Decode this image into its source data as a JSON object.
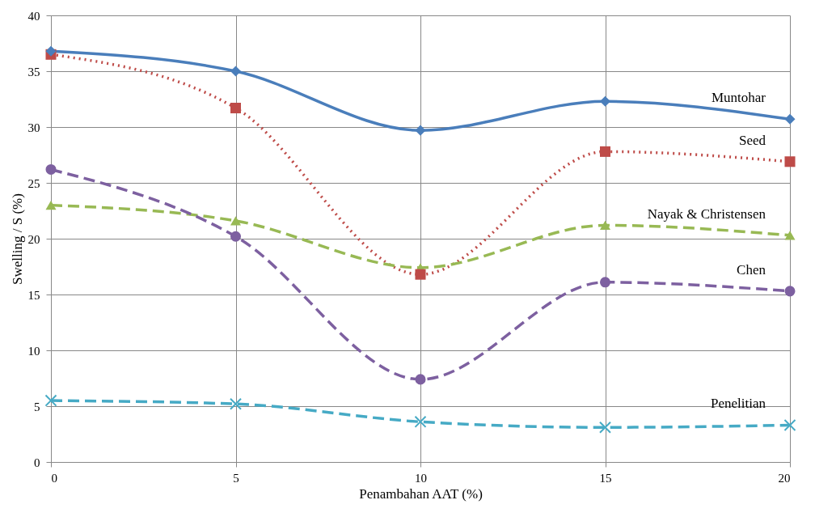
{
  "chart_data": {
    "type": "line",
    "xlabel": "Penambahan AAT (%)",
    "ylabel": "Swelling / S (%)",
    "x": [
      0,
      5,
      10,
      15,
      20
    ],
    "xlim": [
      0,
      20
    ],
    "xticks": [
      0,
      5,
      10,
      15,
      20
    ],
    "ylim": [
      0,
      40
    ],
    "yticks": [
      0,
      5,
      10,
      15,
      20,
      25,
      30,
      35,
      40
    ],
    "grid": true,
    "legend": false,
    "series": [
      {
        "name": "Muntohar",
        "color": "#4a7ebb",
        "values": [
          36.8,
          35.0,
          29.7,
          32.3,
          30.7
        ],
        "marker": "diamond",
        "line_style": "solid"
      },
      {
        "name": "Seed",
        "color": "#be4b48",
        "values": [
          36.5,
          31.7,
          16.8,
          27.8,
          26.9
        ],
        "marker": "square",
        "line_style": "dotted"
      },
      {
        "name": "Nayak & Christensen",
        "color": "#98b954",
        "values": [
          23.0,
          21.6,
          17.4,
          21.2,
          20.3
        ],
        "marker": "triangle",
        "line_style": "dashed"
      },
      {
        "name": "Chen",
        "color": "#7d60a0",
        "values": [
          26.2,
          20.2,
          7.4,
          16.1,
          15.3
        ],
        "marker": "circle",
        "line_style": "dashed"
      },
      {
        "name": "Penelitian",
        "color": "#46aac5",
        "values": [
          5.5,
          5.2,
          3.6,
          3.1,
          3.3
        ],
        "marker": "cross",
        "line_style": "dashed"
      }
    ]
  }
}
